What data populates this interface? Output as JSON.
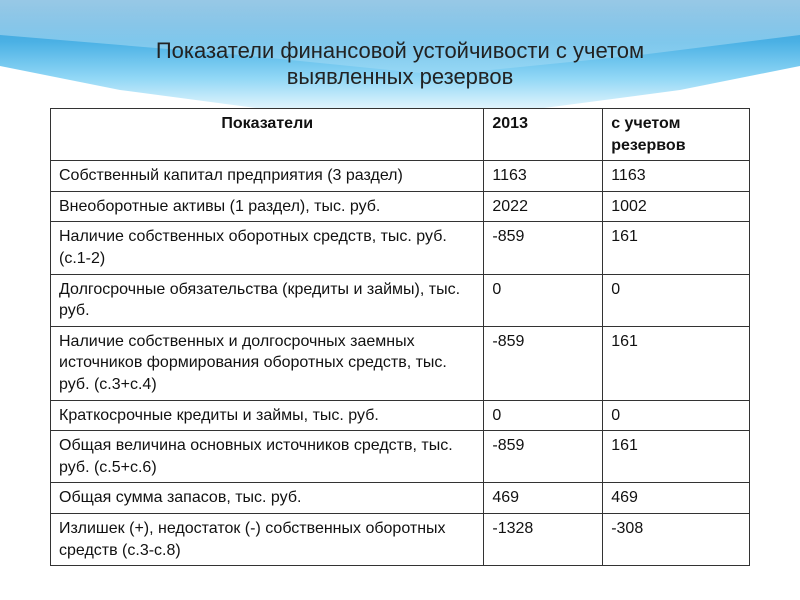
{
  "title_line1": "Показатели  финансовой устойчивости с учетом",
  "title_line2": "выявленных резервов",
  "title_fontsize": "22px",
  "title_weight": "400",
  "columns": [
    "Показатели",
    "2013",
    "с учетом резервов"
  ],
  "rows": [
    [
      "Собственный капитал предприятия (3 раздел)",
      "1163",
      "1163"
    ],
    [
      "Внеоборотные активы (1 раздел), тыс. руб.",
      "2022",
      "1002"
    ],
    [
      "Наличие собственных оборотных средств, тыс. руб. (с.1-2)",
      "-859",
      "161"
    ],
    [
      "Долгосрочные обязательства (кредиты и займы), тыс. руб.",
      "0",
      "0"
    ],
    [
      "Наличие собственных и долгосрочных заемных источников формирования оборотных средств, тыс. руб. (с.3+с.4)",
      "-859",
      "161"
    ],
    [
      "Краткосрочные кредиты и займы, тыс. руб.",
      "0",
      "0"
    ],
    [
      "Общая величина основных источников средств, тыс. руб. (с.5+с.6)",
      "-859",
      "161"
    ],
    [
      "Общая сумма запасов, тыс. руб.",
      "469",
      "469"
    ],
    [
      "Излишек (+), недостаток (-) собственных оборотных средств (с.3-с.8)",
      "-1328",
      "-308"
    ]
  ],
  "table_fontsize": "16px",
  "header_gradient_top": "#0b7ec4",
  "header_gradient_mid": "#2ba3e0",
  "header_gradient_light": "#7dd0f4",
  "border_color": "#333333",
  "background_color": "#ffffff"
}
